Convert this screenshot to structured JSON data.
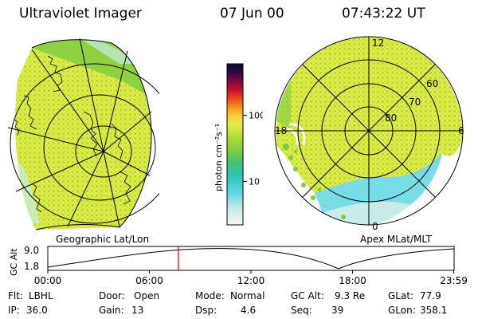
{
  "header": {
    "instrument": "Ultraviolet Imager",
    "date": "07 Jun 00",
    "time": "07:43:22 UT"
  },
  "colorbar": {
    "unit_label": "photon cm⁻²s⁻¹",
    "ticks": [
      {
        "value": 100,
        "label": "100"
      },
      {
        "value": 10,
        "label": "10"
      }
    ],
    "scale": "log",
    "colors": [
      "#f7f7f7",
      "#c8ebe8",
      "#5fd6e0",
      "#2ec8ba",
      "#3ec27a",
      "#7ccd3e",
      "#b5dc3a",
      "#e1ec45",
      "#f5d43c",
      "#f7a020",
      "#ee4a1a",
      "#c80c32",
      "#74083e",
      "#2a0a44",
      "#0a0a2a"
    ]
  },
  "left_map": {
    "label": "Geographic Lat/Lon"
  },
  "right_map": {
    "label": "Apex MLat/MLT",
    "mlt_labels": {
      "top": "12",
      "left": "18",
      "right": "6",
      "bottom": "0"
    },
    "lat_labels": [
      "60",
      "70",
      "80"
    ]
  },
  "altitude_plot": {
    "ylabel": "GC Alt",
    "y_ticks": [
      "9.0",
      "1.8"
    ],
    "x_ticks": [
      "00:00",
      "06:00",
      "12:00",
      "18:00",
      "23:59"
    ],
    "cursor_time_hours": 7.72,
    "cursor_color": "#e00000"
  },
  "info": {
    "row1": [
      {
        "label": "Flt:",
        "value": "LBHL"
      },
      {
        "label": "Door:",
        "value": "Open"
      },
      {
        "label": "Mode:",
        "value": "Normal"
      },
      {
        "label": "GC Alt:",
        "value": "9.3 Re"
      },
      {
        "label": "GLat:",
        "value": "77.9"
      }
    ],
    "row2": [
      {
        "label": "IP:",
        "value": "36.0"
      },
      {
        "label": "Gain:",
        "value": "13"
      },
      {
        "label": "Dsp:",
        "value": "4.6"
      },
      {
        "label": "Seq:",
        "value": "39"
      },
      {
        "label": "GLon:",
        "value": "358.1"
      }
    ]
  }
}
